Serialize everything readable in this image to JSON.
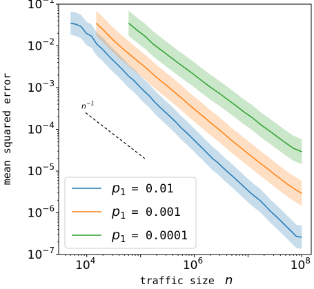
{
  "chart_data": {
    "type": "line",
    "xscale": "log",
    "yscale": "log",
    "xlim": [
      3000,
      150000000
    ],
    "ylim": [
      1e-07,
      0.1
    ],
    "xlabel_text": "traffic size",
    "xlabel_var": "n",
    "ylabel": "mean squared error",
    "xticks": [
      {
        "value": 10000,
        "base": "10",
        "exp": "4"
      },
      {
        "value": 1000000,
        "base": "10",
        "exp": "6"
      },
      {
        "value": 100000000,
        "base": "10",
        "exp": "8"
      }
    ],
    "yticks": [
      {
        "value": 0.1,
        "base": "10",
        "exp": "−1"
      },
      {
        "value": 0.01,
        "base": "10",
        "exp": "−2"
      },
      {
        "value": 0.001,
        "base": "10",
        "exp": "−3"
      },
      {
        "value": 0.0001,
        "base": "10",
        "exp": "−4"
      },
      {
        "value": 1e-05,
        "base": "10",
        "exp": "−5"
      },
      {
        "value": 1e-06,
        "base": "10",
        "exp": "−6"
      },
      {
        "value": 1e-07,
        "base": "10",
        "exp": "−7"
      }
    ],
    "series": [
      {
        "name_var": "p",
        "name_sub": "1",
        "name_value": "= 0.01",
        "color": "#1f77b4",
        "x_start": 5000,
        "x_end": 100000000,
        "y": [
          0.035,
          0.033,
          0.029,
          0.02,
          0.017,
          0.011,
          0.0085,
          0.0062,
          0.0046,
          0.0035,
          0.0026,
          0.0019,
          0.0015,
          0.0011,
          0.00082,
          0.00063,
          0.00045,
          0.00034,
          0.00026,
          0.0002,
          0.00015,
          0.00011,
          8.5e-05,
          6.4e-05,
          4.8e-05,
          3.6e-05,
          2.7e-05,
          2e-05,
          1.6e-05,
          1.2e-05,
          9.3e-06,
          7.2e-06,
          5.5e-06,
          4.2e-06,
          3.2e-06,
          2.5e-06,
          2e-06,
          1.5e-06,
          1.1e-06,
          8.5e-07,
          6.4e-07,
          4.8e-07,
          3.6e-07,
          2.7e-07,
          2.6e-07
        ],
        "band": 0.28
      },
      {
        "name_var": "p",
        "name_sub": "1",
        "name_value": "= 0.001",
        "color": "#ff7f0e",
        "x_start": 15000,
        "x_end": 100000000,
        "y": [
          0.035,
          0.024,
          0.016,
          0.011,
          0.0079,
          0.0057,
          0.0041,
          0.003,
          0.0021,
          0.0015,
          0.0011,
          0.00079,
          0.00057,
          0.0004,
          0.00029,
          0.00021,
          0.00015,
          0.00011,
          7.9e-05,
          5.6e-05,
          4.1e-05,
          3e-05,
          2.2e-05,
          1.6e-05,
          1.2e-05,
          8.7e-06,
          6.5e-06,
          4.8e-06,
          3.7e-06,
          2.9e-06
        ],
        "band": 0.3
      },
      {
        "name_var": "p",
        "name_sub": "1",
        "name_value": "= 0.0001",
        "color": "#2ca02c",
        "x_start": 60000,
        "x_end": 100000000,
        "y": [
          0.035,
          0.024,
          0.017,
          0.011,
          0.0078,
          0.0055,
          0.0039,
          0.0028,
          0.002,
          0.0014,
          0.001,
          0.00073,
          0.00052,
          0.00037,
          0.00026,
          0.00019,
          0.00013,
          9.4e-05,
          6.7e-05,
          4.8e-05,
          3.5e-05,
          2.9e-05
        ],
        "band": 0.3
      }
    ],
    "reference_line": {
      "label_var": "n",
      "label_exp": "−1",
      "x": [
        9500,
        120000
      ],
      "y": [
        0.00025,
        2e-05
      ]
    },
    "legend_position": "lower left",
    "grid": false
  }
}
